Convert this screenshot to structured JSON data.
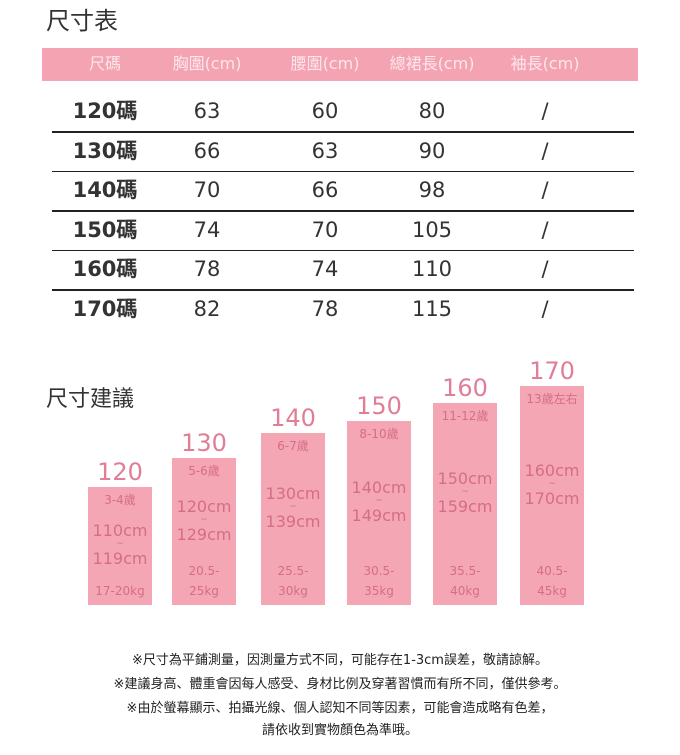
{
  "table_title": "尺寸表",
  "headers": [
    "尺碼",
    "胸圍(cm)",
    "腰圍(cm)",
    "總裙長(cm)",
    "袖長(cm)"
  ],
  "rows": [
    [
      "120碼",
      "63",
      "60",
      "80",
      "/"
    ],
    [
      "130碼",
      "66",
      "63",
      "90",
      "/"
    ],
    [
      "140碼",
      "70",
      "66",
      "98",
      "/"
    ],
    [
      "150碼",
      "74",
      "70",
      "105",
      "/"
    ],
    [
      "160碼",
      "78",
      "74",
      "110",
      "/"
    ],
    [
      "170碼",
      "82",
      "78",
      "115",
      "/"
    ]
  ],
  "suggest_title": "尺寸建議",
  "bars": [
    {
      "size": "120",
      "age": "3-4歲",
      "h1": "110cm",
      "tilde": "~",
      "h2": "119cm",
      "w1": "",
      "w2": "17-20kg"
    },
    {
      "size": "130",
      "age": "5-6歲",
      "h1": "120cm",
      "tilde": "~",
      "h2": "129cm",
      "w1": "20.5-",
      "w2": "25kg"
    },
    {
      "size": "140",
      "age": "6-7歲",
      "h1": "130cm",
      "tilde": "~",
      "h2": "139cm",
      "w1": "25.5-",
      "w2": "30kg"
    },
    {
      "size": "150",
      "age": "8-10歲",
      "h1": "140cm",
      "tilde": "~",
      "h2": "149cm",
      "w1": "30.5-",
      "w2": "35kg"
    },
    {
      "size": "160",
      "age": "11-12歲",
      "h1": "150cm",
      "tilde": "~",
      "h2": "159cm",
      "w1": "35.5-",
      "w2": "40kg"
    },
    {
      "size": "170",
      "age": "13歲左右",
      "h1": "160cm",
      "tilde": "~",
      "h2": "170cm",
      "w1": "40.5-",
      "w2": "45kg"
    }
  ],
  "notes": [
    "※尺寸為平鋪測量，因測量方式不同，可能存在1-3cm誤差，敬請諒解。",
    "※建議身高、體重會因每人感受、身材比例及穿著習慣而有所不同，僅供參考。",
    "※由於螢幕顯示、拍攝光線、個人認知不同等因素，可能會造成略有色差，",
    "請依收到實物顏色為準哦。"
  ]
}
